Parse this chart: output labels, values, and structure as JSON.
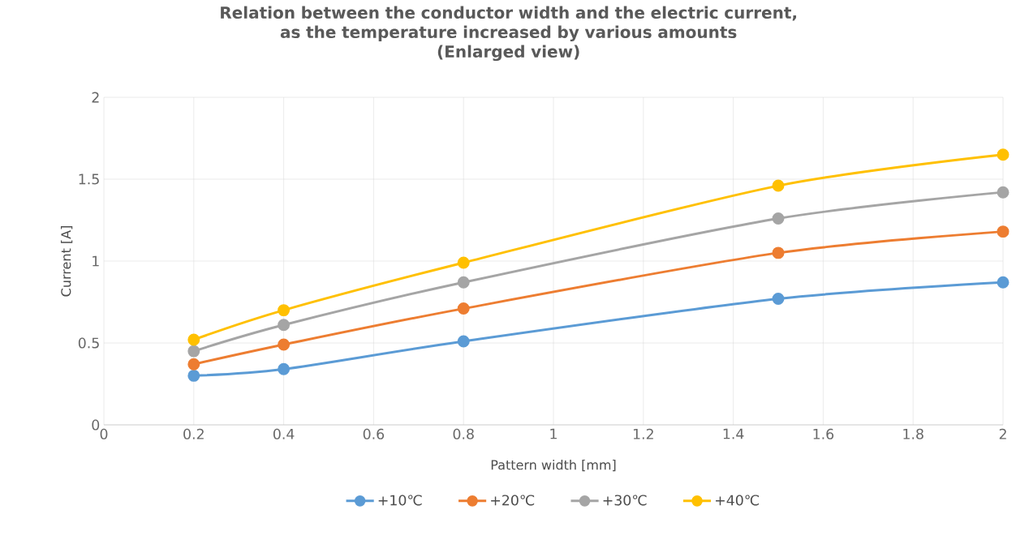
{
  "chart_data": {
    "type": "line",
    "title": "Relation between the conductor width and the electric current,\nas the temperature increased by various amounts\n(Enlarged view)",
    "xlabel": "Pattern width [mm]",
    "ylabel": "Current [A]",
    "x": [
      0.2,
      0.4,
      0.8,
      1.5,
      2
    ],
    "series": [
      {
        "name": "+10℃",
        "color": "#5b9bd5",
        "values": [
          0.3,
          0.34,
          0.51,
          0.77,
          0.87
        ]
      },
      {
        "name": "+20℃",
        "color": "#ed7d31",
        "values": [
          0.37,
          0.49,
          0.71,
          1.05,
          1.18
        ]
      },
      {
        "name": "+30℃",
        "color": "#a5a5a5",
        "values": [
          0.45,
          0.61,
          0.87,
          1.26,
          1.42
        ]
      },
      {
        "name": "+40℃",
        "color": "#ffc000",
        "values": [
          0.52,
          0.7,
          0.99,
          1.46,
          1.65
        ]
      }
    ],
    "xlim": [
      0,
      2
    ],
    "xticks": [
      0,
      0.2,
      0.4,
      0.6,
      0.8,
      1,
      1.2,
      1.4,
      1.6,
      1.8,
      2
    ],
    "ylim": [
      0,
      2
    ],
    "yticks": [
      0,
      0.5,
      1,
      1.5,
      2
    ],
    "grid": true,
    "legend": "bottom",
    "marker": "circle",
    "line_style": "solid"
  }
}
